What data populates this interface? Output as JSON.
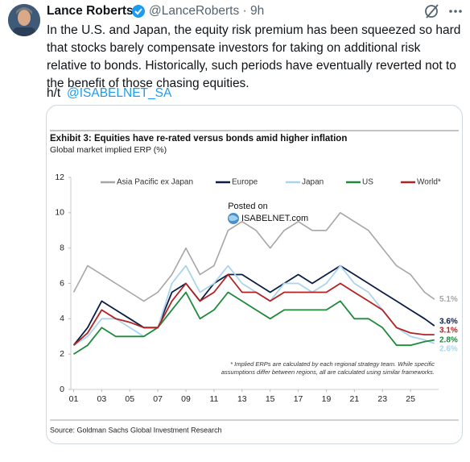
{
  "tweet": {
    "author": "Lance Roberts",
    "meta": "@LanceRoberts · 9h",
    "body": [
      "In the U.S. and Japan, the equity risk premium has been squeezed so hard",
      "that stocks barely compensate investors for taking on additional risk",
      "relative to bonds. Historically, such periods have eventually reverted not to",
      "the benefit of those chasing equities."
    ],
    "hat_tip": "h/t",
    "mention": "@ISABELNET_SA"
  },
  "chart_data": {
    "type": "line",
    "title": "Exhibit 3: Equities have re-rated versus bonds amid higher inflation",
    "subtitle": "Global market implied ERP (%)",
    "source": "Source: Goldman Sachs Global Investment Research",
    "watermark": [
      "Posted on",
      "ISABELNET.com"
    ],
    "footnote": [
      "* Implied ERPs are calculated by each regional strategy team. While specific",
      "assumptions differ between regions, all are calculated using similar frameworks."
    ],
    "x": [
      2001,
      2002,
      2003,
      2004,
      2005,
      2006,
      2007,
      2008,
      2009,
      2010,
      2011,
      2012,
      2013,
      2014,
      2015,
      2016,
      2017,
      2018,
      2019,
      2020,
      2021,
      2022,
      2023,
      2024,
      2025,
      2026,
      2026.7
    ],
    "xlim": [
      2000.8,
      2027
    ],
    "xticks": [
      {
        "value": 2001,
        "label": "01"
      },
      {
        "value": 2003,
        "label": "03"
      },
      {
        "value": 2005,
        "label": "05"
      },
      {
        "value": 2007,
        "label": "07"
      },
      {
        "value": 2009,
        "label": "09"
      },
      {
        "value": 2011,
        "label": "11"
      },
      {
        "value": 2013,
        "label": "13"
      },
      {
        "value": 2015,
        "label": "15"
      },
      {
        "value": 2017,
        "label": "17"
      },
      {
        "value": 2019,
        "label": "19"
      },
      {
        "value": 2021,
        "label": "21"
      },
      {
        "value": 2023,
        "label": "23"
      },
      {
        "value": 2025,
        "label": "25"
      }
    ],
    "ylim": [
      0,
      12
    ],
    "yticks": [
      0,
      2,
      4,
      6,
      8,
      10,
      12
    ],
    "grid": false,
    "legend": "top",
    "series": [
      {
        "name": "Asia Pacific ex Japan",
        "color": "#a6a6a6",
        "end_label": "5.1%",
        "values": [
          5.5,
          7,
          6.5,
          6,
          5.5,
          5,
          5.5,
          6.5,
          8,
          6.5,
          7,
          9,
          9.5,
          9,
          8,
          9,
          9.5,
          9,
          9,
          10,
          9.5,
          9,
          8,
          7,
          6.5,
          5.5,
          5.1
        ]
      },
      {
        "name": "Europe",
        "color": "#0b1f45",
        "end_label": "3.6%",
        "values": [
          2.5,
          3.5,
          5,
          4.5,
          4,
          3.5,
          3.5,
          5.5,
          6,
          5,
          6,
          6.5,
          6.5,
          6,
          5.5,
          6,
          6.5,
          6,
          6.5,
          7,
          6.5,
          6,
          5.5,
          5,
          4.5,
          4,
          3.6
        ]
      },
      {
        "name": "Japan",
        "color": "#a9d4ee",
        "end_label": "2.6%",
        "values": [
          2.5,
          3,
          4,
          4,
          3.5,
          3,
          3.5,
          6,
          7,
          5.5,
          6,
          7,
          6,
          5.5,
          5,
          6,
          6,
          5.5,
          6,
          7,
          6,
          5.5,
          4.5,
          3.5,
          3,
          2.8,
          2.6
        ]
      },
      {
        "name": "US",
        "color": "#1f8a3b",
        "end_label": "2.8%",
        "values": [
          2,
          2.5,
          3.5,
          3,
          3,
          3,
          3.5,
          4.5,
          5.5,
          4,
          4.5,
          5.5,
          5,
          4.5,
          4,
          4.5,
          4.5,
          4.5,
          4.5,
          5,
          4,
          4,
          3.5,
          2.5,
          2.5,
          2.7,
          2.8
        ]
      },
      {
        "name": "World*",
        "color": "#b22222",
        "end_label": "3.1%",
        "values": [
          2.5,
          3.2,
          4.5,
          4,
          3.8,
          3.5,
          3.5,
          5,
          6,
          5,
          5.5,
          6.5,
          5.5,
          5.5,
          5,
          5.5,
          5.5,
          5.5,
          5.5,
          6,
          5.5,
          5,
          4.5,
          3.5,
          3.2,
          3.1,
          3.1
        ]
      }
    ]
  }
}
